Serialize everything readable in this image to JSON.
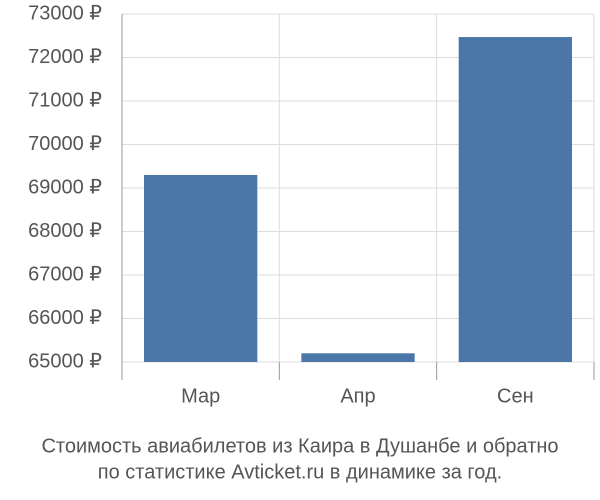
{
  "chart_data": {
    "type": "bar",
    "title": [
      "Стоимость авиабилетов из Каира в Душанбе и обратно",
      "по статистике Avticket.ru в динамике за год."
    ],
    "categories": [
      "Мар",
      "Апр",
      "Сен"
    ],
    "values": [
      69300,
      65200,
      72470
    ],
    "color": "#4a76a8",
    "ylim": [
      65000,
      73000
    ],
    "yticks": [
      {
        "value": 65000,
        "label": "65000 ₽"
      },
      {
        "value": 66000,
        "label": "66000 ₽"
      },
      {
        "value": 67000,
        "label": "67000 ₽"
      },
      {
        "value": 68000,
        "label": "68000 ₽"
      },
      {
        "value": 69000,
        "label": "69000 ₽"
      },
      {
        "value": 70000,
        "label": "70000 ₽"
      },
      {
        "value": 71000,
        "label": "71000 ₽"
      },
      {
        "value": 72000,
        "label": "72000 ₽"
      },
      {
        "value": 73000,
        "label": "73000 ₽"
      }
    ],
    "grid": true
  }
}
